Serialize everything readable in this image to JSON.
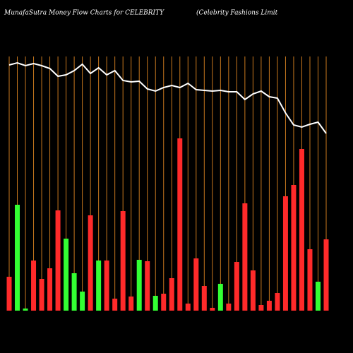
{
  "chart_data": {
    "type": "bar",
    "title": "MunafaSutra  Money Flow  Charts for CELEBRITY",
    "subtitle": "(Celebrity Fashions Limit",
    "ylim": [
      0,
      380
    ],
    "series": [
      {
        "values": [
          48,
          150,
          3,
          71,
          45,
          60,
          142,
          102,
          53,
          27,
          135,
          71,
          71,
          17,
          141,
          20,
          72,
          70,
          21,
          24,
          46,
          244,
          10,
          74,
          35,
          4,
          38,
          10,
          69,
          152,
          57,
          8,
          14,
          25,
          162,
          178,
          229,
          87,
          41,
          101
        ],
        "colors": [
          "#ff2a2a",
          "#33ff33",
          "#33ff33",
          "#ff2a2a",
          "#ff2a2a",
          "#ff2a2a",
          "#ff2a2a",
          "#33ff33",
          "#33ff33",
          "#33ff33",
          "#ff2a2a",
          "#33ff33",
          "#ff2a2a",
          "#ff2a2a",
          "#ff2a2a",
          "#ff2a2a",
          "#33ff33",
          "#ff2a2a",
          "#33ff33",
          "#ff2a2a",
          "#ff2a2a",
          "#ff2a2a",
          "#ff2a2a",
          "#ff2a2a",
          "#ff2a2a",
          "#ff2a2a",
          "#33ff33",
          "#ff2a2a",
          "#ff2a2a",
          "#ff2a2a",
          "#ff2a2a",
          "#ff2a2a",
          "#ff2a2a",
          "#ff2a2a",
          "#ff2a2a",
          "#ff2a2a",
          "#ff2a2a",
          "#ff2a2a",
          "#33ff33",
          "#ff2a2a"
        ]
      },
      {
        "type": "line",
        "color": "#ffffff",
        "values": [
          348,
          351,
          347,
          350,
          347,
          343,
          332,
          334,
          340,
          349,
          336,
          344,
          334,
          340,
          326,
          324,
          325,
          314,
          311,
          316,
          319,
          316,
          322,
          313,
          312,
          311,
          312,
          310,
          310,
          299,
          307,
          311,
          303,
          301,
          280,
          263,
          260,
          264,
          267,
          251
        ]
      }
    ],
    "grid_color": "#c8781e"
  }
}
